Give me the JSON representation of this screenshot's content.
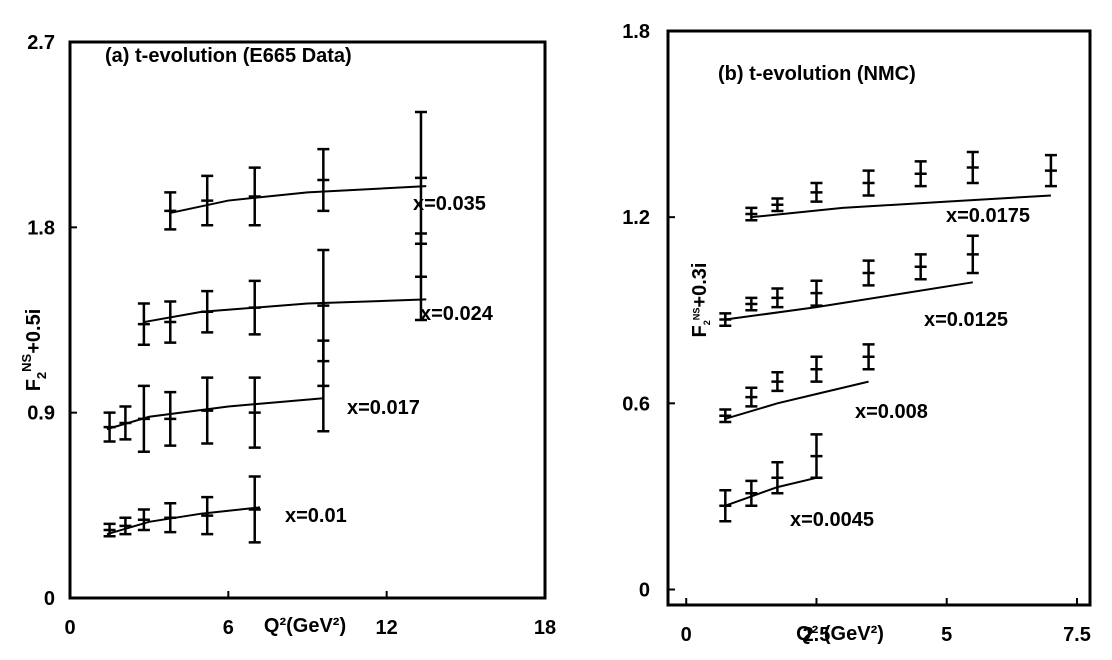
{
  "chart_data": [
    {
      "type": "errorbar-line",
      "title": "(a) t-evolution (E665 Data)",
      "x_label": "Q²(GeV²)",
      "y_label": {
        "main": "F",
        "sub": "2",
        "sup": "NS",
        "suffix": "+0.5i"
      },
      "xlim": [
        0,
        18
      ],
      "xticks": [
        0,
        6,
        12,
        18
      ],
      "ylim": [
        0,
        2.7
      ],
      "yticks": [
        0,
        0.9,
        1.8,
        2.7
      ],
      "series": [
        {
          "name": "x=0.035",
          "x": [
            3.8,
            5.2,
            7.0,
            9.6,
            13.3
          ],
          "values": [
            1.88,
            1.93,
            1.95,
            2.03,
            2.04
          ],
          "errors": [
            0.09,
            0.12,
            0.14,
            0.15,
            0.32
          ],
          "fit_x": [
            3.8,
            6,
            9,
            13.5
          ],
          "fit_values": [
            1.87,
            1.93,
            1.97,
            2.0
          ]
        },
        {
          "name": "x=0.024",
          "x": [
            2.8,
            3.8,
            5.2,
            7.0,
            9.6,
            13.3
          ],
          "values": [
            1.33,
            1.34,
            1.39,
            1.41,
            1.42,
            1.56
          ],
          "errors": [
            0.1,
            0.1,
            0.1,
            0.13,
            0.27,
            0.21
          ],
          "fit_x": [
            2.8,
            5,
            9,
            13.5
          ],
          "fit_values": [
            1.34,
            1.39,
            1.43,
            1.45
          ]
        },
        {
          "name": "x=0.017",
          "x": [
            1.5,
            2.1,
            2.8,
            3.8,
            5.2,
            7.0,
            9.6
          ],
          "values": [
            0.83,
            0.85,
            0.87,
            0.87,
            0.91,
            0.9,
            1.03
          ],
          "errors": [
            0.07,
            0.08,
            0.16,
            0.13,
            0.16,
            0.17,
            0.22
          ],
          "fit_x": [
            1.4,
            3,
            6,
            9.6
          ],
          "fit_values": [
            0.82,
            0.88,
            0.93,
            0.97
          ]
        },
        {
          "name": "x=0.01",
          "x": [
            1.5,
            2.1,
            2.8,
            3.8,
            5.2,
            7.0
          ],
          "values": [
            0.33,
            0.35,
            0.38,
            0.39,
            0.4,
            0.43
          ],
          "errors": [
            0.03,
            0.04,
            0.05,
            0.07,
            0.09,
            0.16
          ],
          "fit_x": [
            1.4,
            3,
            5,
            7.2
          ],
          "fit_values": [
            0.31,
            0.37,
            0.41,
            0.44
          ]
        }
      ]
    },
    {
      "type": "errorbar-line",
      "title": "(b) t-evolution (NMC)",
      "x_label": "Q² (GeV²)",
      "y_label": {
        "main": "F",
        "sub": "2",
        "sup": "NS",
        "suffix": "+0.3i"
      },
      "xlim": [
        -0.35,
        7.75
      ],
      "xticks": [
        0,
        2.5,
        5,
        7.5
      ],
      "ylim": [
        -0.05,
        1.8
      ],
      "yticks": [
        0,
        0.6,
        1.2,
        1.8
      ],
      "series": [
        {
          "name": "x=0.0175",
          "x": [
            1.25,
            1.75,
            2.5,
            3.5,
            4.5,
            5.5,
            7.0
          ],
          "values": [
            1.21,
            1.24,
            1.28,
            1.31,
            1.34,
            1.36,
            1.35
          ],
          "errors": [
            0.02,
            0.02,
            0.03,
            0.04,
            0.04,
            0.05,
            0.05
          ],
          "fit_x": [
            1.25,
            3,
            5,
            7.0
          ],
          "fit_values": [
            1.2,
            1.23,
            1.25,
            1.27
          ]
        },
        {
          "name": "x=0.0125",
          "x": [
            0.75,
            1.25,
            1.75,
            2.5,
            3.5,
            4.5,
            5.5
          ],
          "values": [
            0.87,
            0.92,
            0.94,
            0.955,
            1.02,
            1.04,
            1.08
          ],
          "errors": [
            0.02,
            0.02,
            0.03,
            0.04,
            0.04,
            0.04,
            0.06
          ],
          "fit_x": [
            0.75,
            2.5,
            4,
            5.5
          ],
          "fit_values": [
            0.87,
            0.91,
            0.95,
            0.99
          ]
        },
        {
          "name": "x=0.008",
          "x": [
            0.75,
            1.25,
            1.75,
            2.5,
            3.5
          ],
          "values": [
            0.56,
            0.62,
            0.67,
            0.71,
            0.75
          ],
          "errors": [
            0.02,
            0.03,
            0.03,
            0.04,
            0.04
          ],
          "fit_x": [
            0.75,
            1.75,
            2.5,
            3.5
          ],
          "fit_values": [
            0.55,
            0.6,
            0.63,
            0.67
          ]
        },
        {
          "name": "x=0.0045",
          "x": [
            0.75,
            1.25,
            1.75,
            2.5
          ],
          "values": [
            0.27,
            0.31,
            0.36,
            0.43
          ],
          "errors": [
            0.05,
            0.04,
            0.05,
            0.07
          ],
          "fit_x": [
            0.75,
            1.25,
            1.75,
            2.5
          ],
          "fit_values": [
            0.27,
            0.3,
            0.33,
            0.36
          ]
        }
      ]
    }
  ]
}
